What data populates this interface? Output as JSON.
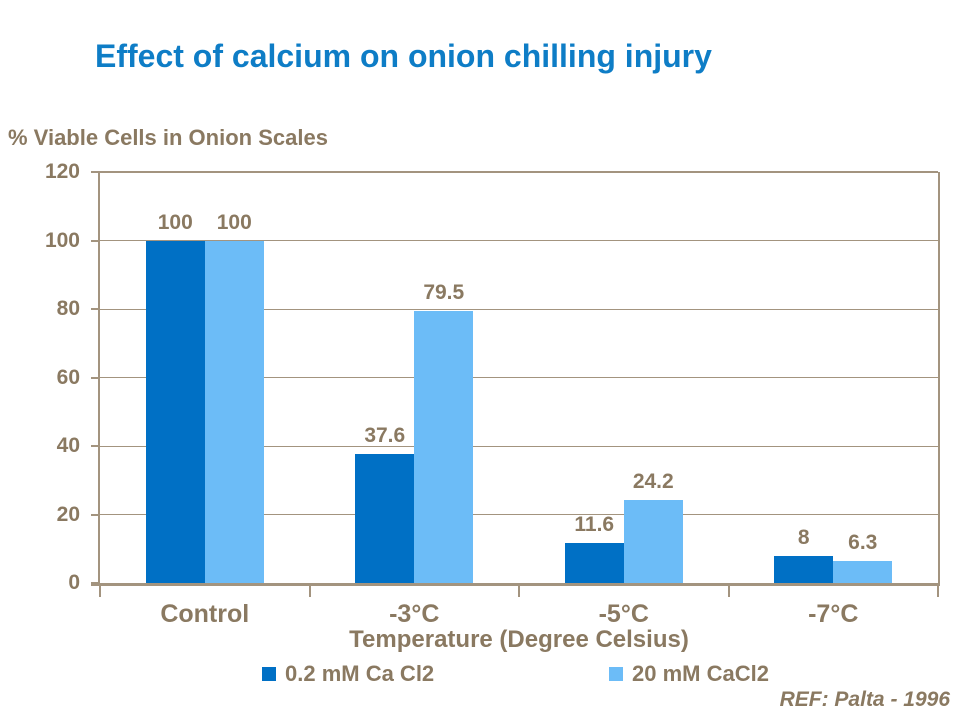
{
  "slide": {
    "title": "Effect of calcium on onion chilling injury",
    "ref": "REF: Palta - 1996"
  },
  "colors": {
    "title_blue": "#0E7DC6",
    "text_brown": "#8A7961",
    "axis_line": "#A3947F",
    "series1": "#0070C5",
    "series2": "#6CBCF7",
    "background": "#FFFFFF"
  },
  "chart_data": {
    "type": "bar",
    "title": "Effect of calcium on onion chilling injury",
    "ylabel": "% Viable Cells in Onion Scales",
    "xlabel": "Temperature (Degree Celsius)",
    "categories": [
      "Control",
      "-3°C",
      "-5°C",
      "-7°C"
    ],
    "series": [
      {
        "name": "0.2 mM Ca Cl2",
        "color": "#0070C5",
        "values": [
          100,
          37.6,
          11.6,
          8
        ]
      },
      {
        "name": "20 mM CaCl2",
        "color": "#6CBCF7",
        "values": [
          100,
          79.5,
          24.2,
          6.3
        ]
      }
    ],
    "data_labels": true,
    "y_ticks": [
      0,
      20,
      40,
      60,
      80,
      100,
      120
    ],
    "ylim": [
      0,
      120
    ],
    "grid": true,
    "legend_position": "bottom",
    "annotations": [
      "REF: Palta - 1996"
    ]
  }
}
